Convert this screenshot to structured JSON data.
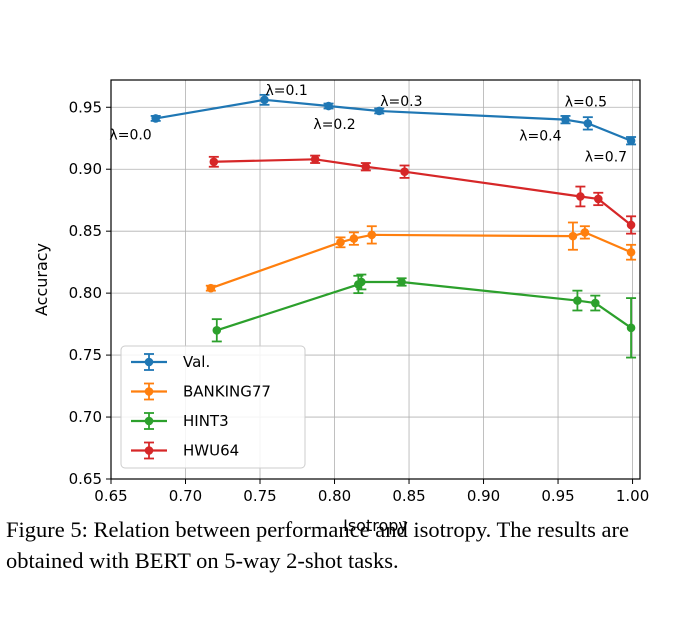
{
  "chart_data": {
    "type": "line",
    "xlabel": "Isotropy",
    "ylabel": "Accuracy",
    "xlim": [
      0.65,
      1.005
    ],
    "ylim": [
      0.65,
      0.972
    ],
    "xticks": [
      0.65,
      0.7,
      0.75,
      0.8,
      0.85,
      0.9,
      0.95,
      1.0
    ],
    "xtick_labels": [
      "0.65",
      "0.70",
      "0.75",
      "0.80",
      "0.85",
      "0.90",
      "0.95",
      "1.00"
    ],
    "yticks": [
      0.65,
      0.7,
      0.75,
      0.8,
      0.85,
      0.9,
      0.95
    ],
    "ytick_labels": [
      "0.65",
      "0.70",
      "0.75",
      "0.80",
      "0.85",
      "0.90",
      "0.95"
    ],
    "grid": true,
    "legend_position": "lower-left",
    "series": [
      {
        "name": "Val.",
        "color": "#1f77b4",
        "x": [
          0.68,
          0.753,
          0.796,
          0.83,
          0.955,
          0.97,
          0.999
        ],
        "y": [
          0.941,
          0.956,
          0.951,
          0.947,
          0.94,
          0.937,
          0.923
        ],
        "err": [
          0.002,
          0.004,
          0.002,
          0.002,
          0.003,
          0.005,
          0.003
        ]
      },
      {
        "name": "BANKING77",
        "color": "#ff7f0e",
        "x": [
          0.717,
          0.804,
          0.813,
          0.825,
          0.96,
          0.968,
          0.999
        ],
        "y": [
          0.804,
          0.841,
          0.844,
          0.847,
          0.846,
          0.849,
          0.833
        ],
        "err": [
          0.002,
          0.004,
          0.005,
          0.007,
          0.011,
          0.005,
          0.006
        ]
      },
      {
        "name": "HINT3",
        "color": "#2ca02c",
        "x": [
          0.721,
          0.816,
          0.818,
          0.845,
          0.963,
          0.975,
          0.999
        ],
        "y": [
          0.77,
          0.807,
          0.809,
          0.809,
          0.794,
          0.792,
          0.772
        ],
        "err": [
          0.009,
          0.007,
          0.006,
          0.003,
          0.008,
          0.006,
          0.024
        ]
      },
      {
        "name": "HWU64",
        "color": "#d62728",
        "x": [
          0.719,
          0.787,
          0.821,
          0.847,
          0.965,
          0.977,
          0.999
        ],
        "y": [
          0.906,
          0.908,
          0.902,
          0.898,
          0.878,
          0.876,
          0.855
        ],
        "err": [
          0.004,
          0.003,
          0.003,
          0.005,
          0.008,
          0.005,
          0.007
        ]
      }
    ],
    "annotations": [
      {
        "text": "λ=0.0",
        "x": 0.68,
        "y": 0.941,
        "position": "below-left"
      },
      {
        "text": "λ=0.1",
        "x": 0.753,
        "y": 0.956,
        "position": "above-right"
      },
      {
        "text": "λ=0.2",
        "x": 0.796,
        "y": 0.951,
        "position": "below"
      },
      {
        "text": "λ=0.3",
        "x": 0.83,
        "y": 0.947,
        "position": "above-right"
      },
      {
        "text": "λ=0.4",
        "x": 0.955,
        "y": 0.94,
        "position": "below-left"
      },
      {
        "text": "λ=0.5",
        "x": 0.97,
        "y": 0.937,
        "position": "above"
      },
      {
        "text": "λ=0.7",
        "x": 0.999,
        "y": 0.923,
        "position": "below-left"
      }
    ]
  },
  "caption": {
    "text": "Figure 5: Relation between performance and isotropy. The results are obtained with BERT on 5-way 2-shot tasks."
  }
}
